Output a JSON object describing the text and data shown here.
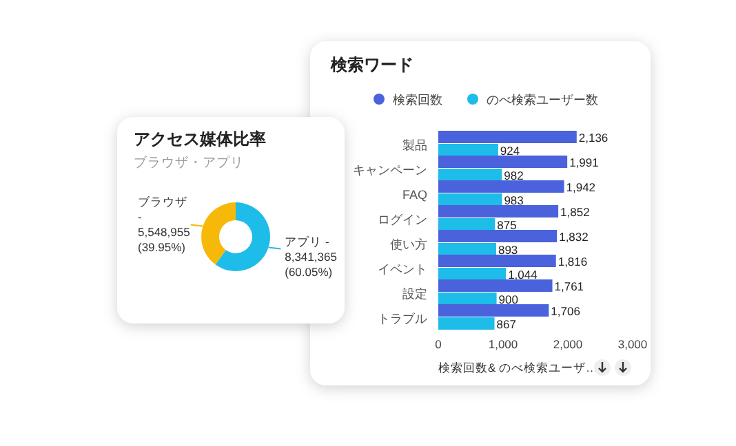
{
  "chart_data": [
    {
      "type": "donut",
      "title": "アクセス媒体比率",
      "subtitle": "ブラウザ・アプリ",
      "categories": [
        "アプリ -",
        "ブラウザ -"
      ],
      "values": [
        8341365,
        5548955
      ],
      "value_labels": [
        "8,341,365 (60.05%)",
        "5,548,955 (39.95%)"
      ],
      "colors": [
        "#1ebce8",
        "#f6b909"
      ]
    },
    {
      "type": "bar",
      "orientation": "horizontal",
      "title": "検索ワード",
      "xlabel": "検索回数& のべ検索ユーザ…",
      "categories": [
        "製品",
        "キャンペーン",
        "FAQ",
        "ログイン",
        "使い方",
        "イベント",
        "設定",
        "トラブル"
      ],
      "series": [
        {
          "name": "検索回数",
          "color": "#4a62dc",
          "values": [
            2136,
            1991,
            1942,
            1852,
            1832,
            1816,
            1761,
            1706
          ],
          "value_labels": [
            "2,136",
            "1,991",
            "1,942",
            "1,852",
            "1,832",
            "1,816",
            "1,761",
            "1,706"
          ]
        },
        {
          "name": "のべ検索ユーザー数",
          "color": "#1ebce8",
          "values": [
            924,
            982,
            983,
            875,
            893,
            1044,
            900,
            867
          ],
          "value_labels": [
            "924",
            "982",
            "983",
            "875",
            "893",
            "1,044",
            "900",
            "867"
          ]
        }
      ],
      "xlim": [
        0,
        3000
      ],
      "xticks": [
        0,
        {
          "value": 1000,
          "label": "1,000"
        },
        {
          "value": 2000,
          "label": "2,000"
        },
        {
          "value": 3000,
          "label": "3,000"
        }
      ],
      "legend": "top"
    }
  ]
}
